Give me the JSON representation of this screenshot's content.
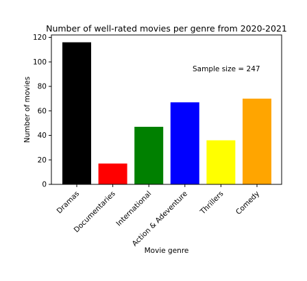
{
  "chart_data": {
    "type": "bar",
    "title": "Number of well-rated movies per genre from 2020-2021",
    "xlabel": "Movie genre",
    "ylabel": "Number of movies",
    "categories": [
      "Dramas",
      "Documentaries",
      "International",
      "Action & Adeventure",
      "Thrillers",
      "Comedy"
    ],
    "values": [
      116,
      17,
      47,
      67,
      36,
      70
    ],
    "colors": [
      "#000000",
      "#ff0000",
      "#008000",
      "#0000ff",
      "#ffff00",
      "#ffa500"
    ],
    "ylim": [
      0,
      122
    ],
    "yticks": [
      0,
      20,
      40,
      60,
      80,
      100,
      120
    ],
    "annotation": "Sample size = 247",
    "grid": false,
    "legend": "none"
  }
}
